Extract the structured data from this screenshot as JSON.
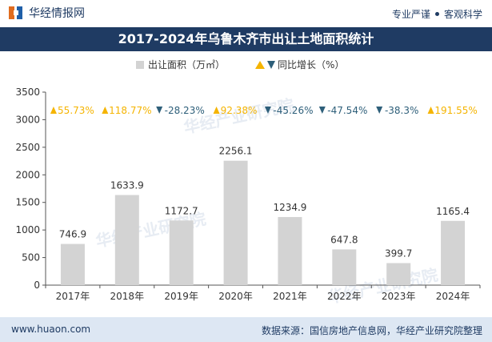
{
  "header": {
    "brand": "华经情报网",
    "tags": [
      "专业严谨",
      "客观科学"
    ]
  },
  "chart_data": {
    "type": "bar",
    "title": "2017-2024年乌鲁木齐市出让土地面积统计",
    "categories": [
      "2017年",
      "2018年",
      "2019年",
      "2020年",
      "2021年",
      "2022年",
      "2023年",
      "2024年"
    ],
    "series": [
      {
        "name": "出让面积（万㎡）",
        "values": [
          746.9,
          1633.9,
          1172.7,
          2256.1,
          1234.9,
          647.8,
          399.7,
          1165.4
        ]
      }
    ],
    "growth": {
      "name": "同比增长（%）",
      "labels": [
        "55.73%",
        "118.77%",
        "-28.23%",
        "92.38%",
        "-45.26%",
        "-47.54%",
        "-38.3%",
        "191.55%"
      ],
      "values": [
        55.73,
        118.77,
        -28.23,
        92.38,
        -45.26,
        -47.54,
        -38.3,
        191.55
      ]
    },
    "yticks": [
      0,
      500,
      1000,
      1500,
      2000,
      2500,
      3000,
      3500
    ],
    "ylim": [
      0,
      3500
    ],
    "grid": false,
    "legend_position": "top-center",
    "colors": {
      "bar": "#d3d3d3",
      "up": "#f5b400",
      "down": "#2e5f7a",
      "text": "#333333",
      "axis": "#555555"
    }
  },
  "watermark": "华经产业研究院",
  "footer": {
    "url": "www.huaon.com",
    "source": "数据来源：国信房地产信息网，华经产业研究院整理"
  }
}
